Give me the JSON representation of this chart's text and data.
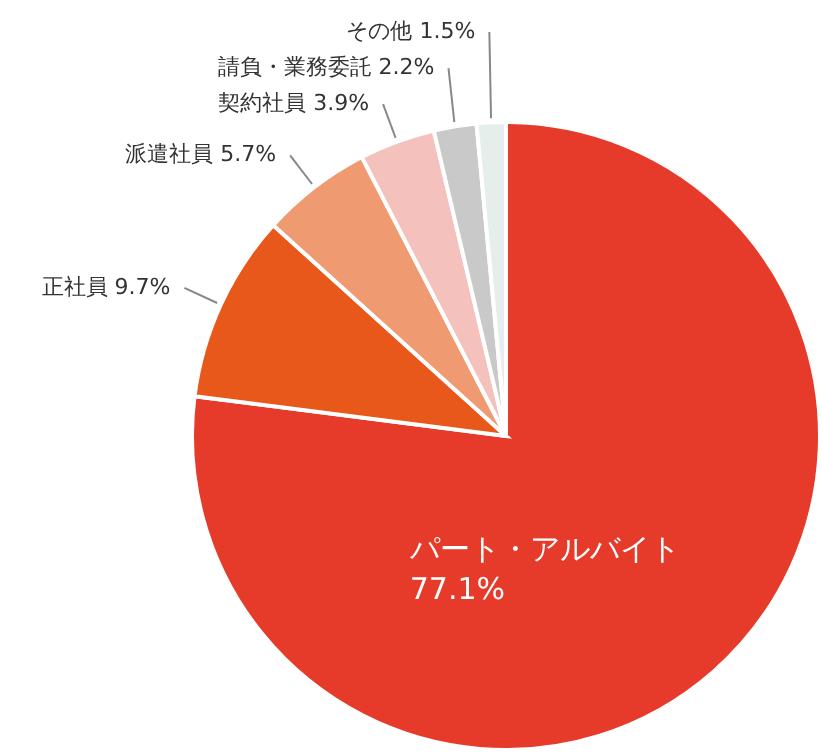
{
  "chart_data": {
    "type": "pie",
    "categories": [
      "パート・アルバイト",
      "正社員",
      "派遣社員",
      "契約社員",
      "請負・業務委託",
      "その他"
    ],
    "values": [
      77.1,
      9.7,
      5.7,
      3.9,
      2.2,
      1.5
    ],
    "value_labels": [
      "77.1%",
      "9.7%",
      "5.7%",
      "3.9%",
      "2.2%",
      "1.5%"
    ],
    "colors": [
      "#e63b2a",
      "#e8581a",
      "#f09a72",
      "#f5c1bc",
      "#c9c9c9",
      "#e6eeec"
    ]
  }
}
